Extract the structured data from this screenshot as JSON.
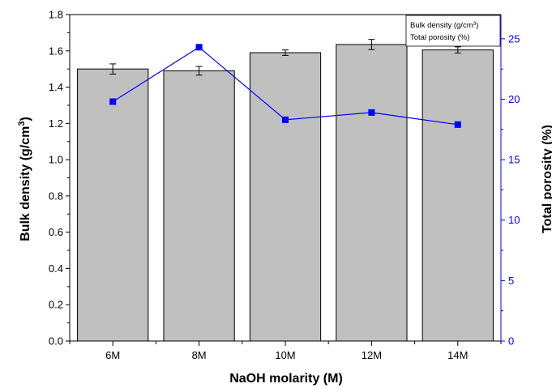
{
  "chart_data": {
    "type": "bar",
    "xlabel": "NaOH molarity (M)",
    "ylabel": "Bulk density (g/cm",
    "ylabel_sup": "3",
    "ylabel_end": ")",
    "y2label": "Total porosity (%)",
    "categories": [
      "6M",
      "8M",
      "10M",
      "12M",
      "14M"
    ],
    "ylim": [
      0.0,
      1.8
    ],
    "y2lim": [
      0,
      27
    ],
    "yticks": [
      "0.0",
      "0.2",
      "0.4",
      "0.6",
      "0.8",
      "1.0",
      "1.2",
      "1.4",
      "1.6",
      "1.8"
    ],
    "y2ticks": [
      "0",
      "5",
      "10",
      "15",
      "20",
      "25"
    ],
    "series": [
      {
        "name": "Bulk density (g/cm",
        "name_sup": "3",
        "name_end": ")",
        "axis": "left",
        "type": "bar",
        "values": [
          1.5,
          1.49,
          1.59,
          1.635,
          1.605
        ],
        "errors": [
          0.028,
          0.024,
          0.015,
          0.028,
          0.017
        ],
        "color": "#c0c0c0"
      },
      {
        "name": "Total porosity (%)",
        "axis": "right",
        "type": "line",
        "values": [
          19.8,
          24.3,
          18.3,
          18.9,
          17.9
        ],
        "color": "#0000ff"
      }
    ],
    "legend_position": "top-right",
    "grid": false
  }
}
